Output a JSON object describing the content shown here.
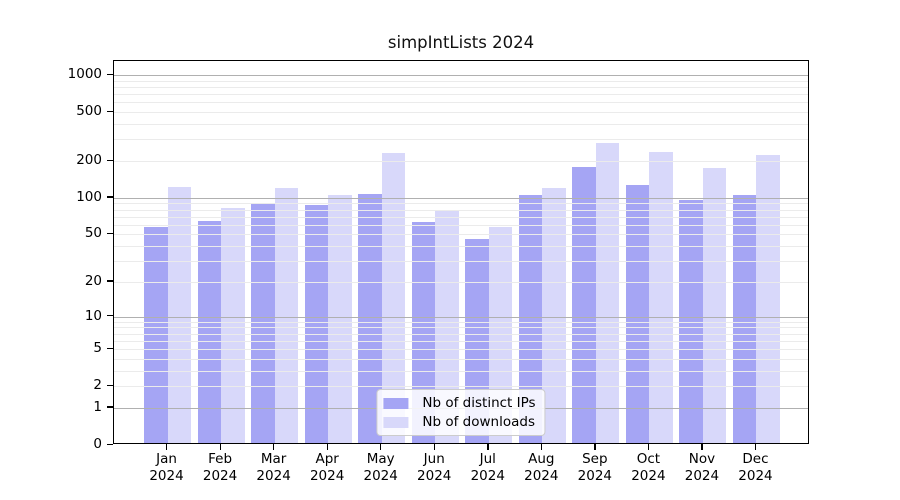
{
  "title": "simpIntLists 2024",
  "colors": {
    "ips_bar": "#a5a5f4",
    "downloads_bar": "#d8d8fa",
    "grid_major": "#b0b0b0",
    "grid_minor": "#ebebeb",
    "axis": "#000000",
    "legend_bg": "rgba(255,255,255,0.85)",
    "legend_border": "#cccccc"
  },
  "legend": {
    "items": [
      {
        "label": "Nb of distinct IPs",
        "series": "ips"
      },
      {
        "label": "Nb of downloads",
        "series": "downloads"
      }
    ]
  },
  "y_axis": {
    "tick_values": [
      0,
      1,
      2,
      5,
      10,
      20,
      50,
      100,
      200,
      500,
      1000
    ],
    "tick_labels": [
      "0",
      "1",
      "2",
      "5",
      "10",
      "20",
      "50",
      "100",
      "200",
      "500",
      "1000"
    ],
    "major_gridlines": [
      1,
      10,
      100,
      1000
    ],
    "minor_gridlines": [
      2,
      3,
      4,
      5,
      6,
      7,
      8,
      9,
      20,
      30,
      40,
      50,
      60,
      70,
      80,
      90,
      200,
      300,
      400,
      500,
      600,
      700,
      800,
      900
    ],
    "max_value": 1300
  },
  "x_axis": {
    "months": [
      "Jan",
      "Feb",
      "Mar",
      "Apr",
      "May",
      "Jun",
      "Jul",
      "Aug",
      "Sep",
      "Oct",
      "Nov",
      "Dec"
    ],
    "year": "2024"
  },
  "chart_data": {
    "type": "bar",
    "title": "simpIntLists 2024",
    "categories": [
      "Jan 2024",
      "Feb 2024",
      "Mar 2024",
      "Apr 2024",
      "May 2024",
      "Jun 2024",
      "Jul 2024",
      "Aug 2024",
      "Sep 2024",
      "Oct 2024",
      "Nov 2024",
      "Dec 2024"
    ],
    "series": [
      {
        "name": "Nb of distinct IPs",
        "color": "#a5a5f4",
        "values": [
          56,
          62,
          87,
          84,
          104,
          61,
          44,
          101,
          173,
          123,
          93,
          101
        ]
      },
      {
        "name": "Nb of downloads",
        "color": "#d8d8fa",
        "values": [
          118,
          79,
          116,
          101,
          225,
          77,
          56,
          115,
          270,
          227,
          168,
          216
        ]
      }
    ],
    "yscale": "symlog",
    "xlabel": "",
    "ylabel": "",
    "ylim": [
      0,
      1300
    ],
    "grid": "on",
    "legend_position": "lower center"
  }
}
